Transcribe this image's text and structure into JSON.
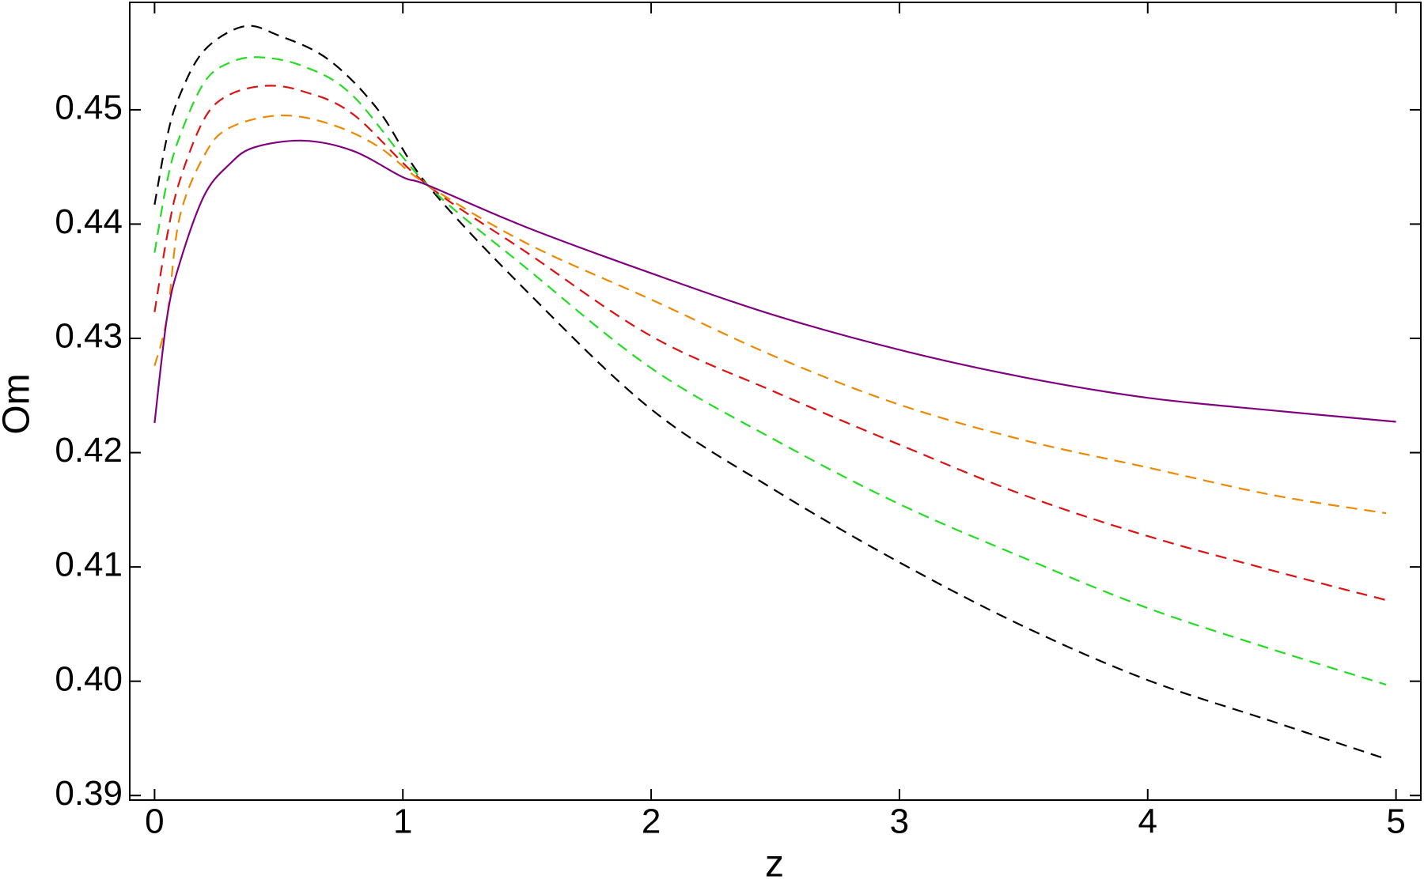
{
  "chart_data": {
    "type": "line",
    "x_label": "z",
    "y_label": "Om",
    "xlim": [
      -0.1,
      5.1
    ],
    "ylim": [
      0.3896,
      0.4594
    ],
    "xticks": [
      0,
      1,
      2,
      3,
      4,
      5
    ],
    "yticks": [
      0.39,
      {
        "value": 0.4,
        "label": "0.40"
      },
      0.41,
      0.42,
      0.43,
      0.44,
      0.45
    ],
    "grid": false,
    "series": [
      {
        "color": "#000000",
        "style": "dashed",
        "x": [
          0,
          0.05,
          0.1,
          0.2,
          0.36,
          0.5,
          0.7,
          0.9,
          1.1,
          1.5,
          2,
          2.5,
          3,
          3.5,
          4,
          4.5,
          4.96
        ],
        "values": [
          0.4417,
          0.4476,
          0.4512,
          0.4552,
          0.4573,
          0.4565,
          0.4544,
          0.45,
          0.4434,
          0.4341,
          0.4238,
          0.4167,
          0.4104,
          0.4048,
          0.4001,
          0.3965,
          0.3932
        ]
      },
      {
        "color": "#22dd22",
        "style": "dashed",
        "x": [
          0,
          0.05,
          0.1,
          0.2,
          0.3,
          0.42,
          0.6,
          0.8,
          1.1,
          1.5,
          2,
          2.5,
          3,
          3.5,
          4,
          4.5,
          4.96
        ],
        "values": [
          0.4375,
          0.4437,
          0.4476,
          0.4524,
          0.4541,
          0.4546,
          0.4538,
          0.4512,
          0.4434,
          0.4361,
          0.4274,
          0.4211,
          0.4155,
          0.4108,
          0.4064,
          0.4028,
          0.3997
        ]
      },
      {
        "color": "#dd1111",
        "style": "dashed",
        "x": [
          0,
          0.05,
          0.1,
          0.2,
          0.3,
          0.45,
          0.6,
          0.8,
          1.1,
          1.5,
          2,
          2.5,
          3,
          3.5,
          4,
          4.5,
          4.96
        ],
        "values": [
          0.4323,
          0.4389,
          0.4437,
          0.4492,
          0.4513,
          0.4521,
          0.4516,
          0.4496,
          0.4434,
          0.4375,
          0.4302,
          0.4253,
          0.4207,
          0.4163,
          0.4127,
          0.4097,
          0.4071
        ]
      },
      {
        "color": "#ee8800",
        "style": "dashed",
        "x": [
          0,
          0.05,
          0.1,
          0.2,
          0.3,
          0.5,
          0.7,
          0.9,
          1.1,
          1.5,
          2,
          2.5,
          3,
          3.5,
          4,
          4.5,
          4.96
        ],
        "values": [
          0.4276,
          0.4318,
          0.4405,
          0.446,
          0.4484,
          0.4495,
          0.4488,
          0.4468,
          0.4434,
          0.4383,
          0.4334,
          0.4284,
          0.4242,
          0.4211,
          0.4187,
          0.4163,
          0.4147
        ]
      },
      {
        "color": "#800080",
        "style": "solid",
        "x": [
          0,
          0.05,
          0.1,
          0.2,
          0.3,
          0.4,
          0.6,
          0.8,
          1.0,
          1.1,
          1.5,
          2,
          2.5,
          3,
          3.5,
          4,
          4.5,
          5
        ],
        "values": [
          0.4226,
          0.4318,
          0.4365,
          0.4425,
          0.4452,
          0.4467,
          0.4473,
          0.4464,
          0.4441,
          0.4434,
          0.4397,
          0.4357,
          0.432,
          0.429,
          0.4266,
          0.4248,
          0.4237,
          0.4227
        ]
      }
    ]
  }
}
